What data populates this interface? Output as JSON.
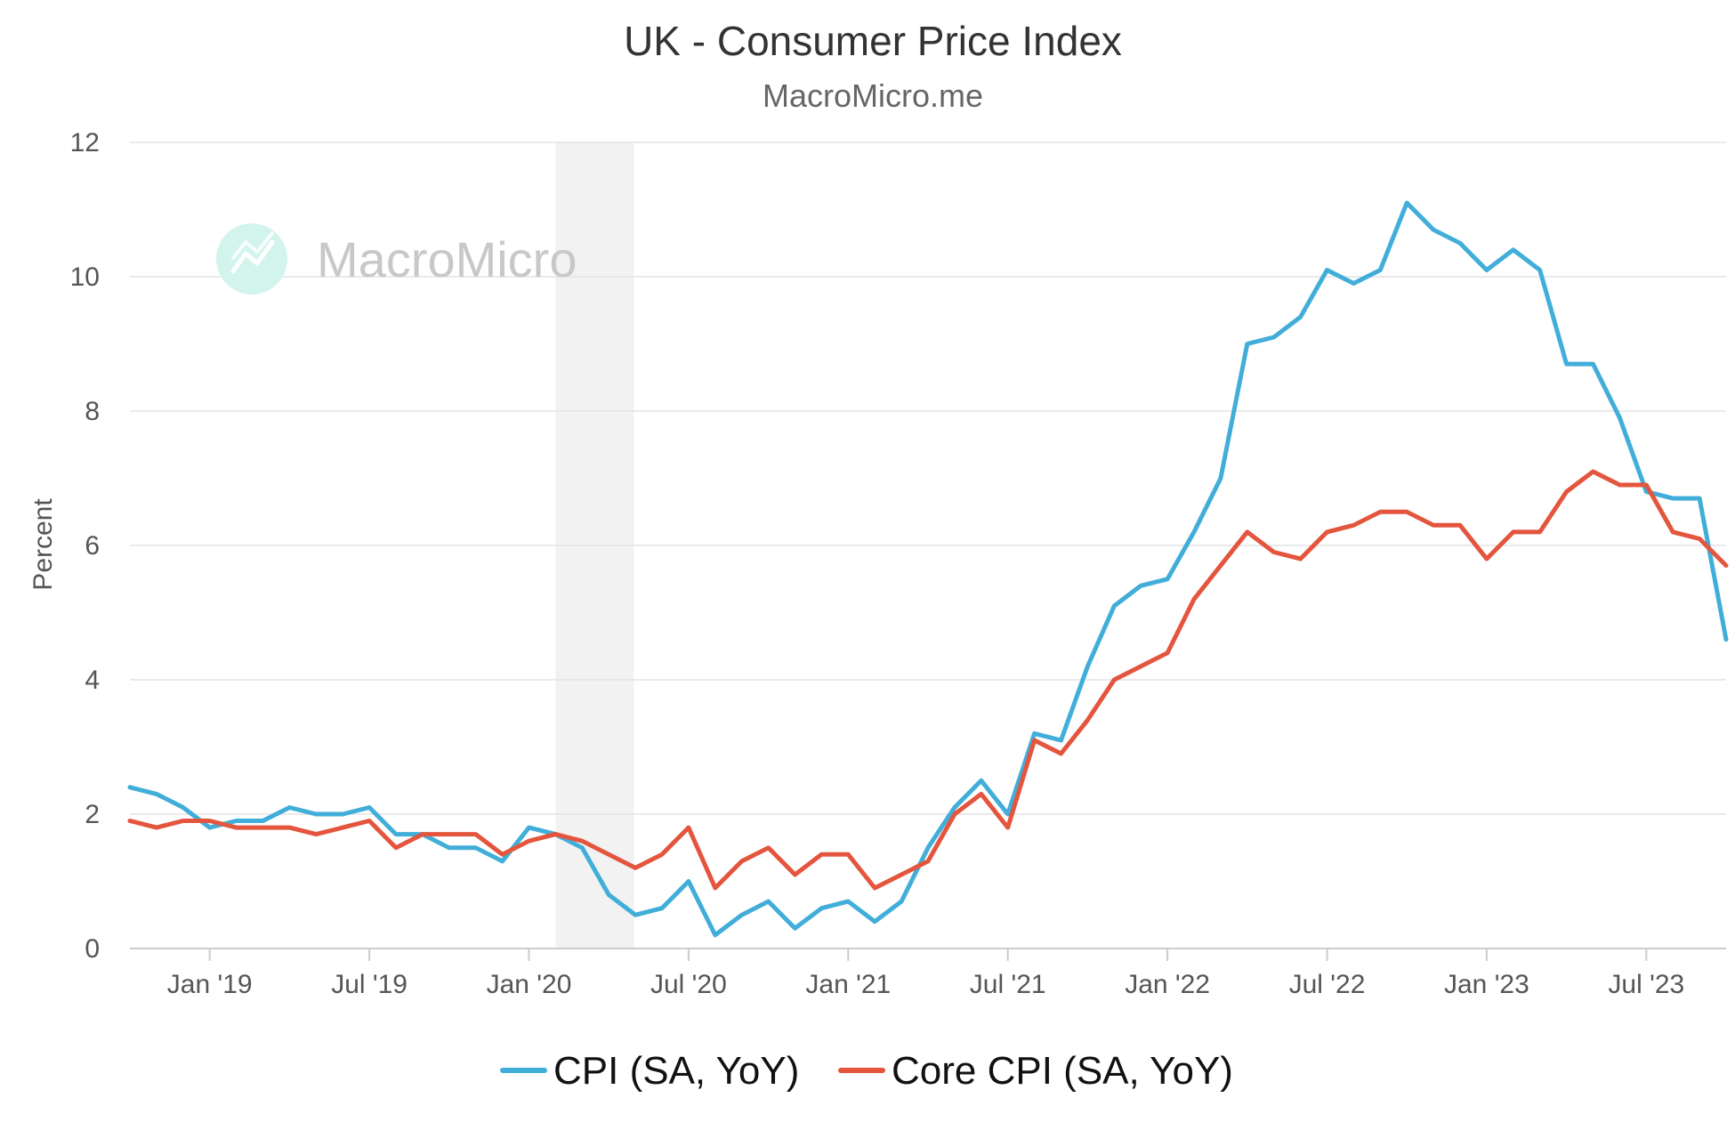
{
  "chart_data": {
    "type": "line",
    "title": "UK - Consumer Price Index",
    "subtitle": "MacroMicro.me",
    "watermark": "MacroMicro",
    "ylabel": "Percent",
    "ylim": [
      0,
      12
    ],
    "yticks": [
      0,
      2,
      4,
      6,
      8,
      10,
      12
    ],
    "grid": true,
    "legend_position": "bottom",
    "shaded_period": [
      "2020-02",
      "2020-04"
    ],
    "xticks": [
      {
        "date": "2019-01",
        "label": "Jan '19"
      },
      {
        "date": "2019-07",
        "label": "Jul '19"
      },
      {
        "date": "2020-01",
        "label": "Jan '20"
      },
      {
        "date": "2020-07",
        "label": "Jul '20"
      },
      {
        "date": "2021-01",
        "label": "Jan '21"
      },
      {
        "date": "2021-07",
        "label": "Jul '21"
      },
      {
        "date": "2022-01",
        "label": "Jan '22"
      },
      {
        "date": "2022-07",
        "label": "Jul '22"
      },
      {
        "date": "2023-01",
        "label": "Jan '23"
      },
      {
        "date": "2023-07",
        "label": "Jul '23"
      }
    ],
    "x": [
      "2018-10",
      "2018-11",
      "2018-12",
      "2019-01",
      "2019-02",
      "2019-03",
      "2019-04",
      "2019-05",
      "2019-06",
      "2019-07",
      "2019-08",
      "2019-09",
      "2019-10",
      "2019-11",
      "2019-12",
      "2020-01",
      "2020-02",
      "2020-03",
      "2020-04",
      "2020-05",
      "2020-06",
      "2020-07",
      "2020-08",
      "2020-09",
      "2020-10",
      "2020-11",
      "2020-12",
      "2021-01",
      "2021-02",
      "2021-03",
      "2021-04",
      "2021-05",
      "2021-06",
      "2021-07",
      "2021-08",
      "2021-09",
      "2021-10",
      "2021-11",
      "2021-12",
      "2022-01",
      "2022-02",
      "2022-03",
      "2022-04",
      "2022-05",
      "2022-06",
      "2022-07",
      "2022-08",
      "2022-09",
      "2022-10",
      "2022-11",
      "2022-12",
      "2023-01",
      "2023-02",
      "2023-03",
      "2023-04",
      "2023-05",
      "2023-06",
      "2023-07",
      "2023-08",
      "2023-09",
      "2023-10"
    ],
    "series": [
      {
        "name": "CPI (SA, YoY)",
        "color": "#41aed9",
        "values": [
          2.4,
          2.3,
          2.1,
          1.8,
          1.9,
          1.9,
          2.1,
          2.0,
          2.0,
          2.1,
          1.7,
          1.7,
          1.5,
          1.5,
          1.3,
          1.8,
          1.7,
          1.5,
          0.8,
          0.5,
          0.6,
          1.0,
          0.2,
          0.5,
          0.7,
          0.3,
          0.6,
          0.7,
          0.4,
          0.7,
          1.5,
          2.1,
          2.5,
          2.0,
          3.2,
          3.1,
          4.2,
          5.1,
          5.4,
          5.5,
          6.2,
          7.0,
          9.0,
          9.1,
          9.4,
          10.1,
          9.9,
          10.1,
          11.1,
          10.7,
          10.5,
          10.1,
          10.4,
          10.1,
          8.7,
          8.7,
          7.9,
          6.8,
          6.7,
          6.7,
          4.6
        ]
      },
      {
        "name": "Core CPI (SA, YoY)",
        "color": "#e4553e",
        "values": [
          1.9,
          1.8,
          1.9,
          1.9,
          1.8,
          1.8,
          1.8,
          1.7,
          1.8,
          1.9,
          1.5,
          1.7,
          1.7,
          1.7,
          1.4,
          1.6,
          1.7,
          1.6,
          1.4,
          1.2,
          1.4,
          1.8,
          0.9,
          1.3,
          1.5,
          1.1,
          1.4,
          1.4,
          0.9,
          1.1,
          1.3,
          2.0,
          2.3,
          1.8,
          3.1,
          2.9,
          3.4,
          4.0,
          4.2,
          4.4,
          5.2,
          5.7,
          6.2,
          5.9,
          5.8,
          6.2,
          6.3,
          6.5,
          6.5,
          6.3,
          6.3,
          5.8,
          6.2,
          6.2,
          6.8,
          7.1,
          6.9,
          6.9,
          6.2,
          6.1,
          5.7
        ]
      }
    ]
  }
}
